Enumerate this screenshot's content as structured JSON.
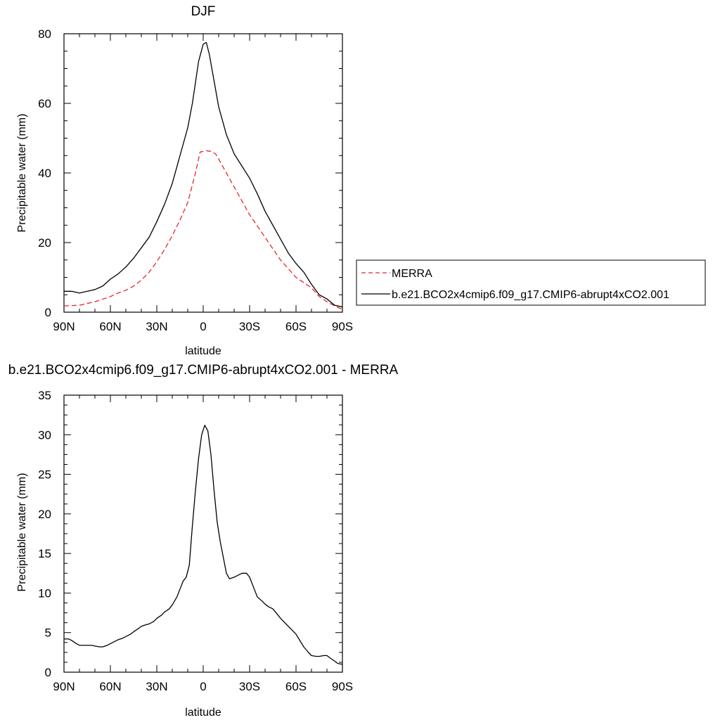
{
  "colors": {
    "merra": "#e8262b",
    "model": "#000000",
    "background": "#ffffff"
  },
  "chart_data": [
    {
      "type": "line",
      "title": "DJF",
      "xlabel": "latitude",
      "ylabel": "Precipitable water (mm)",
      "xlim": [
        -90,
        90
      ],
      "ylim": [
        0,
        80
      ],
      "x_ticks": [
        -90,
        -60,
        -30,
        0,
        30,
        60,
        90
      ],
      "x_tick_labels": [
        "90N",
        "60N",
        "30N",
        "0",
        "30S",
        "60S",
        "90S"
      ],
      "y_ticks": [
        0,
        20,
        40,
        60,
        80
      ],
      "y_tick_labels": [
        "0",
        "20",
        "40",
        "60",
        "80"
      ],
      "legend": {
        "placement": "outside-right"
      },
      "series": [
        {
          "name": "MERRA",
          "style": "dashed",
          "color": "#e8262b",
          "x": [
            -90,
            -80,
            -70,
            -60,
            -55,
            -50,
            -45,
            -40,
            -35,
            -30,
            -25,
            -20,
            -15,
            -10,
            -5,
            -2,
            0,
            2,
            5,
            8,
            10,
            15,
            20,
            25,
            30,
            40,
            50,
            60,
            65,
            70,
            75,
            80,
            85,
            90
          ],
          "y": [
            1.8,
            2,
            3,
            4.5,
            5.5,
            6.3,
            7.5,
            9.2,
            11.5,
            14.5,
            18,
            22,
            26.5,
            31.5,
            40,
            46,
            46.2,
            46.4,
            46.2,
            45.5,
            44,
            40,
            36,
            32,
            28,
            21.5,
            15,
            10,
            8.5,
            7,
            4.5,
            3,
            1.8,
            0.8
          ]
        },
        {
          "name": "b.e21.BCO2x4cmip6.f09_g17.CMIP6-abrupt4xCO2.001",
          "style": "solid",
          "color": "#000000",
          "x": [
            -90,
            -85,
            -80,
            -75,
            -70,
            -65,
            -60,
            -55,
            -50,
            -45,
            -40,
            -35,
            -30,
            -25,
            -20,
            -15,
            -10,
            -7,
            -5,
            -3,
            0,
            2,
            4,
            6,
            8,
            10,
            15,
            20,
            25,
            30,
            35,
            40,
            45,
            50,
            55,
            60,
            65,
            70,
            75,
            80,
            85,
            90
          ],
          "y": [
            6,
            6,
            5.5,
            6,
            6.5,
            7.5,
            9.5,
            11,
            13,
            15.5,
            18.5,
            21.5,
            26,
            31,
            37,
            45,
            53,
            60,
            66,
            72,
            77,
            77.5,
            74,
            69,
            64,
            59,
            51,
            45.5,
            42,
            38.5,
            34,
            29,
            25,
            21,
            17,
            14,
            11.5,
            8,
            5,
            3.8,
            2,
            1.5
          ]
        }
      ]
    },
    {
      "type": "line",
      "title": "b.e21.BCO2x4cmip6.f09_g17.CMIP6-abrupt4xCO2.001 - MERRA",
      "xlabel": "latitude",
      "ylabel": "Precipitable water (mm)",
      "xlim": [
        -90,
        90
      ],
      "ylim": [
        0,
        35
      ],
      "x_ticks": [
        -90,
        -60,
        -30,
        0,
        30,
        60,
        90
      ],
      "x_tick_labels": [
        "90N",
        "60N",
        "30N",
        "0",
        "30S",
        "60S",
        "90S"
      ],
      "y_ticks": [
        0,
        5,
        10,
        15,
        20,
        25,
        30,
        35
      ],
      "y_tick_labels": [
        "0",
        "5",
        "10",
        "15",
        "20",
        "25",
        "30",
        "35"
      ],
      "series": [
        {
          "style": "solid",
          "color": "#000000",
          "x": [
            -90,
            -87,
            -85,
            -82,
            -80,
            -77,
            -75,
            -72,
            -70,
            -67,
            -65,
            -62,
            -60,
            -57,
            -55,
            -52,
            -50,
            -47,
            -45,
            -42,
            -40,
            -37,
            -35,
            -32,
            -30,
            -27,
            -25,
            -22,
            -20,
            -17,
            -15,
            -13,
            -11,
            -9,
            -7,
            -5,
            -3,
            -1,
            1,
            3,
            5,
            7,
            9,
            11,
            13,
            15,
            17,
            20,
            22,
            25,
            28,
            30,
            33,
            35,
            38,
            40,
            42,
            45,
            48,
            50,
            55,
            60,
            65,
            68,
            70,
            73,
            75,
            78,
            80,
            82,
            85,
            87,
            90
          ],
          "y": [
            4.2,
            4.2,
            4,
            3.6,
            3.4,
            3.4,
            3.4,
            3.4,
            3.3,
            3.2,
            3.2,
            3.4,
            3.6,
            3.9,
            4.1,
            4.3,
            4.5,
            4.8,
            5.1,
            5.5,
            5.8,
            6,
            6.1,
            6.4,
            6.8,
            7.2,
            7.6,
            8,
            8.5,
            9.5,
            10.5,
            11.5,
            12,
            13.5,
            18.5,
            23,
            27,
            30,
            31.2,
            30.5,
            27.5,
            23,
            19,
            16.5,
            14.5,
            12.5,
            11.8,
            12,
            12.2,
            12.5,
            12.5,
            12,
            10.5,
            9.5,
            9,
            8.6,
            8.3,
            8,
            7.3,
            6.8,
            5.8,
            4.8,
            3.2,
            2.5,
            2.1,
            2,
            2,
            2.1,
            2.1,
            1.8,
            1.4,
            1.1,
            1
          ]
        }
      ]
    }
  ]
}
